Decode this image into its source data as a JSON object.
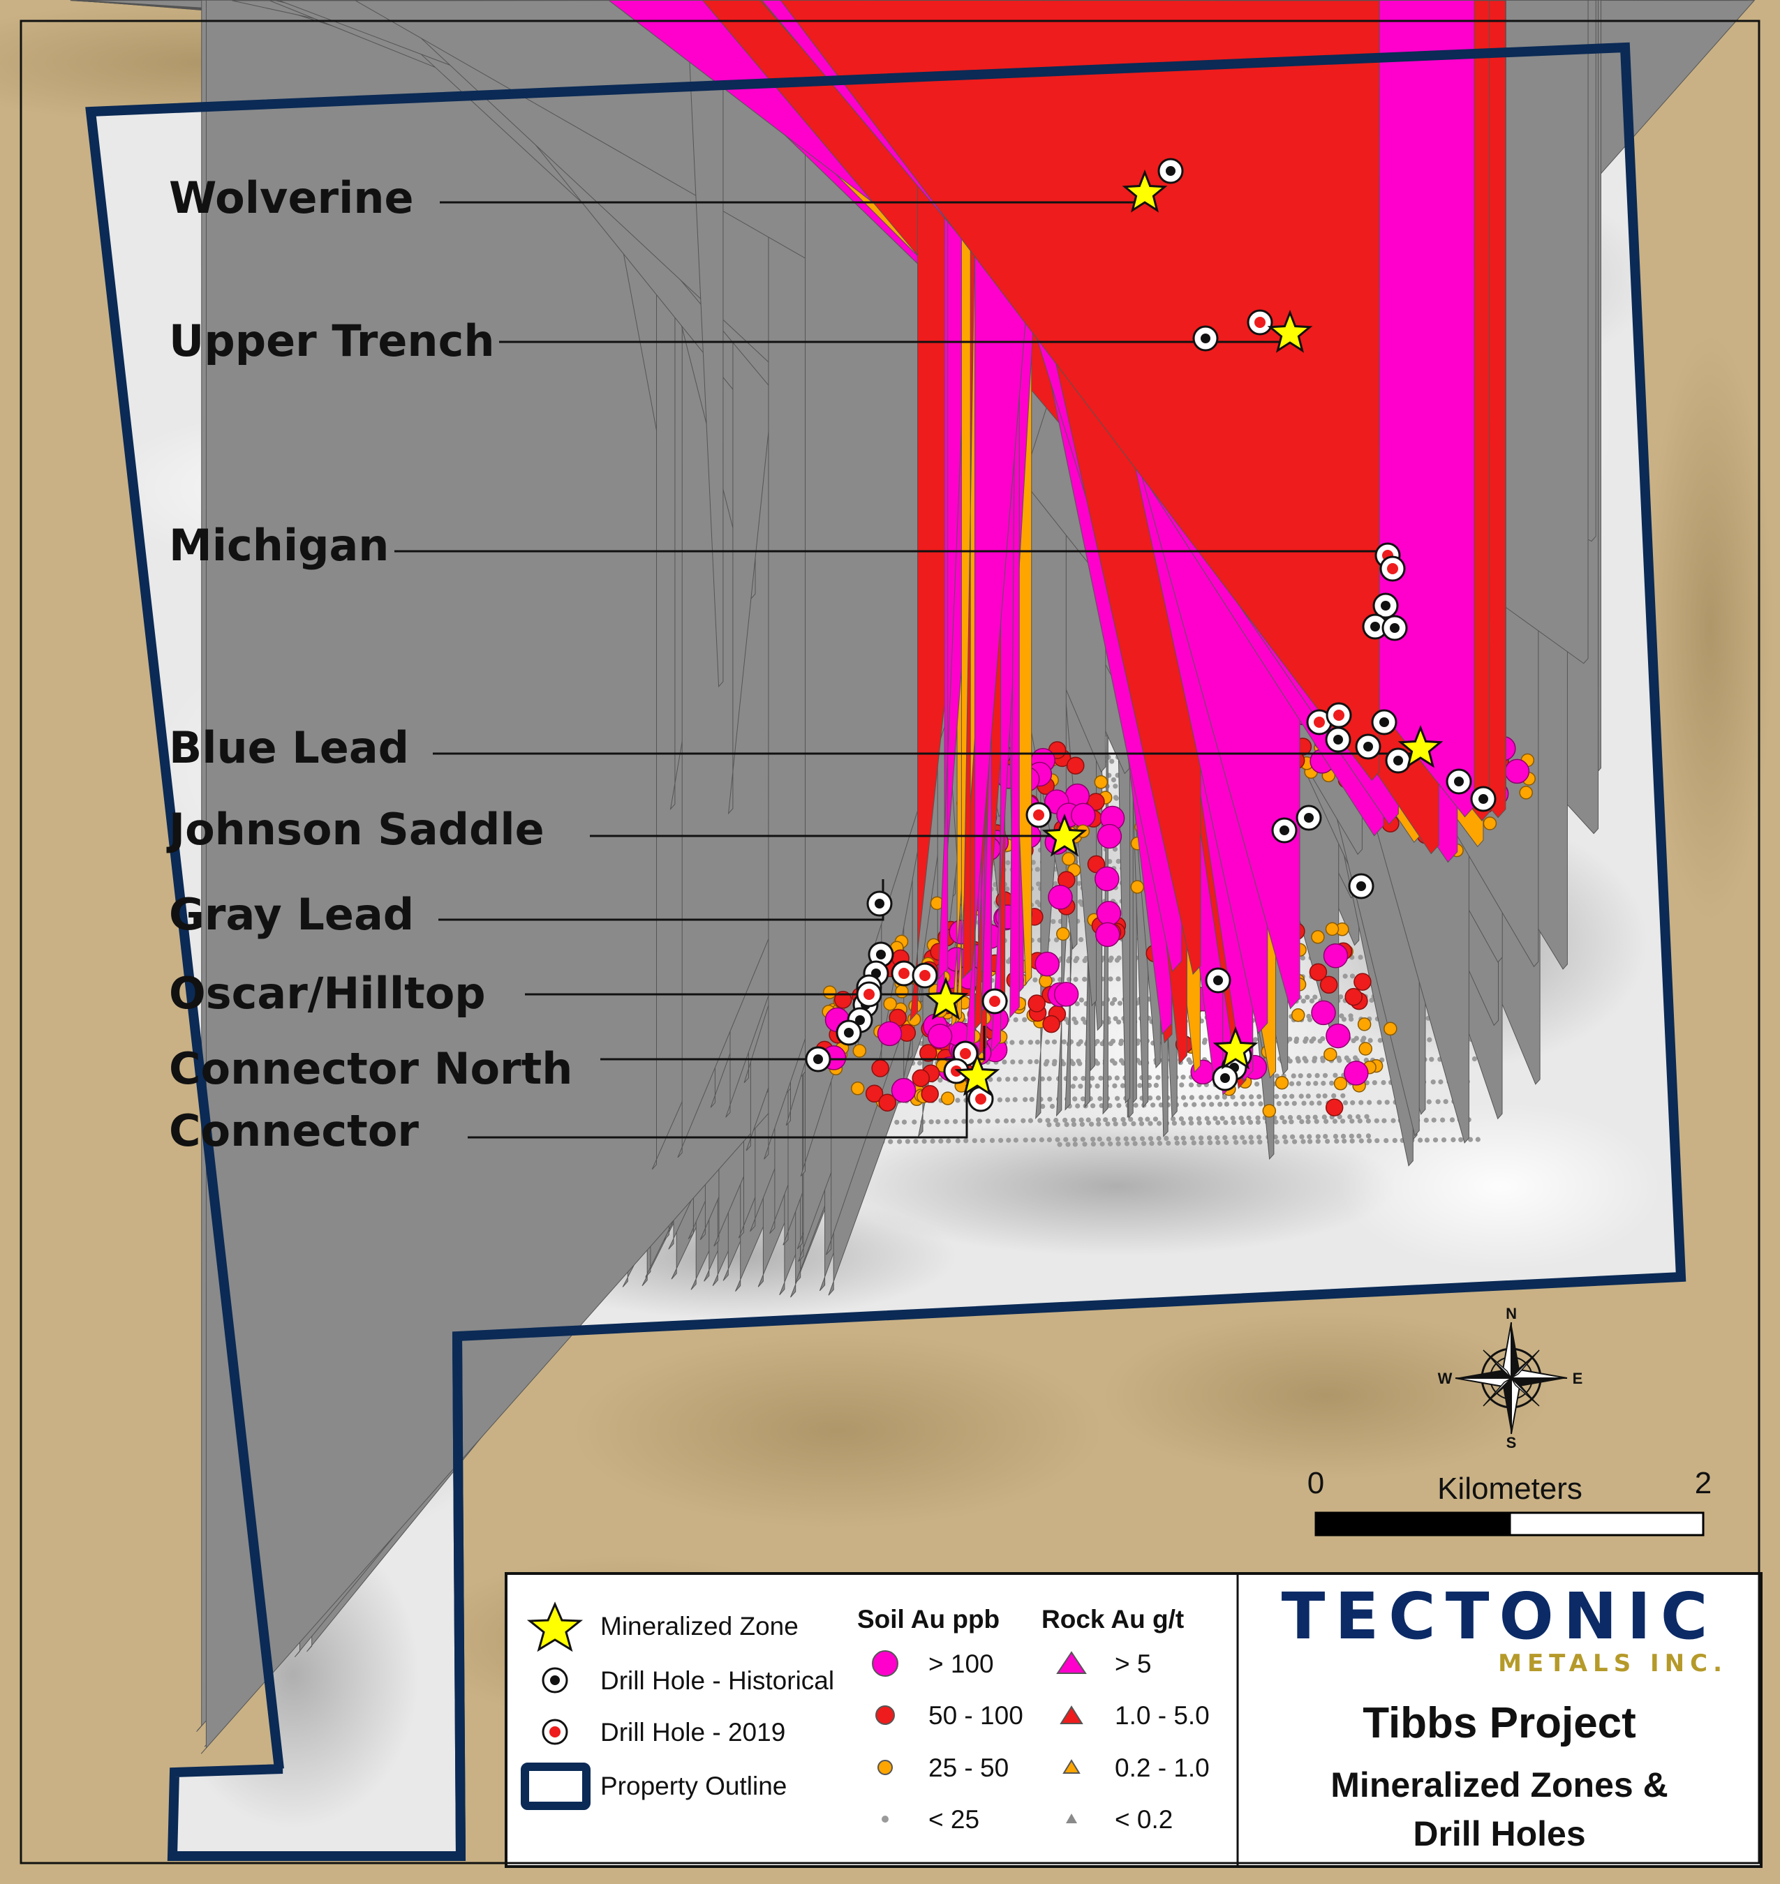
{
  "zones": [
    {
      "id": "wolverine",
      "label": "Wolverine"
    },
    {
      "id": "upper-trench",
      "label": "Upper Trench"
    },
    {
      "id": "michigan",
      "label": "Michigan"
    },
    {
      "id": "blue-lead",
      "label": "Blue Lead"
    },
    {
      "id": "johnson-saddle",
      "label": "Johnson Saddle"
    },
    {
      "id": "gray-lead",
      "label": "Gray Lead"
    },
    {
      "id": "oscar-hilltop",
      "label": "Oscar/Hilltop"
    },
    {
      "id": "connector-north",
      "label": "Connector North"
    },
    {
      "id": "connector",
      "label": "Connector"
    }
  ],
  "legend": {
    "mineralized_zone": "Mineralized Zone",
    "drill_historical": "Drill Hole - Historical",
    "drill_2019": "Drill Hole - 2019",
    "property_outline": "Property Outline",
    "soil_header": "Soil Au ppb",
    "rock_header": "Rock Au g/t",
    "soil_classes": [
      "> 100",
      "50 - 100",
      "25 - 50",
      "< 25"
    ],
    "rock_classes": [
      "> 5",
      "1.0 - 5.0",
      "0.2 - 1.0",
      "< 0.2"
    ]
  },
  "brand": {
    "name": "TECTONIC",
    "sub": "METALS INC."
  },
  "title": {
    "line1": "Tibbs Project",
    "line2": "Mineralized Zones &",
    "line3": "Drill Holes"
  },
  "scalebar": {
    "start": "0",
    "unit": "Kilometers",
    "end": "2"
  },
  "compass": {
    "n": "N",
    "s": "S",
    "e": "E",
    "w": "W"
  },
  "colors": {
    "terrain_outside": "#c9b185",
    "property_fill": "#e6e6e6",
    "property_border": "#0b2a55",
    "soil_gt100": "#ff00cc",
    "soil_50_100": "#ee1c1c",
    "soil_25_50": "#ffa500",
    "soil_lt25": "#9a9a9a",
    "rock_gt5": "#ff00cc",
    "rock_1_5": "#ee1c1c",
    "rock_02_1": "#ffa500",
    "rock_lt02": "#8a8a8a",
    "star": "#ffff00",
    "brand_blue": "#0b2a66",
    "brand_gold": "#b59a2a"
  }
}
